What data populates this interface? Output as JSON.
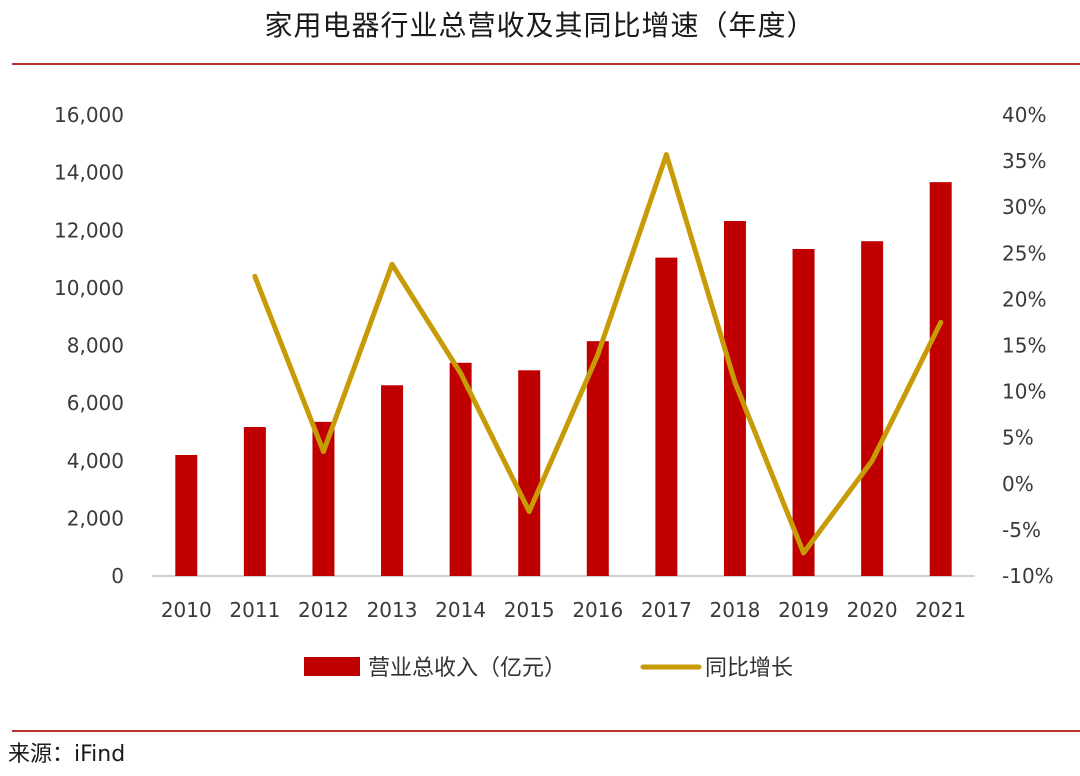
{
  "title": "家用电器行业总营收及其同比增速（年度）",
  "source": "来源：iFind",
  "colors": {
    "bar": "#c00000",
    "line": "#c79b06",
    "rule": "#b8322f"
  },
  "chart_data": {
    "type": "bar+line",
    "categories": [
      "2010",
      "2011",
      "2012",
      "2013",
      "2014",
      "2015",
      "2016",
      "2017",
      "2018",
      "2019",
      "2020",
      "2021"
    ],
    "series": [
      {
        "name": "营业总收入（亿元）",
        "type": "bar",
        "axis": "left",
        "values": [
          4200,
          5170,
          5350,
          6620,
          7400,
          7140,
          8150,
          11050,
          12320,
          11350,
          11620,
          13670
        ]
      },
      {
        "name": "同比增长",
        "type": "line",
        "axis": "right",
        "values": [
          null,
          22.5,
          3.5,
          23.8,
          12.0,
          -3.0,
          14.0,
          35.7,
          11.0,
          -7.5,
          2.5,
          17.5
        ]
      }
    ],
    "y_left": {
      "lim": [
        0,
        16000
      ],
      "ticks": [
        0,
        2000,
        4000,
        6000,
        8000,
        10000,
        12000,
        14000,
        16000
      ],
      "tick_labels": [
        "0",
        "2,000",
        "4,000",
        "6,000",
        "8,000",
        "10,000",
        "12,000",
        "14,000",
        "16,000"
      ]
    },
    "y_right": {
      "lim": [
        -10,
        40
      ],
      "ticks": [
        -10,
        -5,
        0,
        5,
        10,
        15,
        20,
        25,
        30,
        35,
        40
      ],
      "tick_labels": [
        "-10%",
        "-5%",
        "0%",
        "5%",
        "10%",
        "15%",
        "20%",
        "25%",
        "30%",
        "35%",
        "40%"
      ]
    },
    "grid": false,
    "legend": "bottom"
  }
}
